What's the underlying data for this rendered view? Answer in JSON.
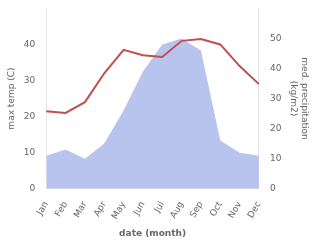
{
  "chart_data": {
    "type": "line",
    "categories": [
      "Jan",
      "Feb",
      "Mar",
      "Apr",
      "May",
      "Jun",
      "Jul",
      "Aug",
      "Sep",
      "Oct",
      "Nov",
      "Dec"
    ],
    "series": [
      {
        "type": "area",
        "color": "#b8c4ee",
        "axis": "y2",
        "values": [
          11,
          13,
          10,
          15,
          26,
          39,
          48,
          50,
          46,
          16,
          12,
          11
        ]
      },
      {
        "type": "line",
        "color": "#c0504d",
        "values": [
          21.5,
          21.0,
          24.0,
          32.0,
          38.5,
          37.0,
          36.5,
          41.0,
          41.5,
          40.0,
          34.0,
          29.0
        ]
      }
    ],
    "xlabel": "date (month)",
    "ylabel": "max temp (C)",
    "y2label": "med. precipitation\n(kg/m2)",
    "ylim": [
      0,
      50
    ],
    "yticks": [
      0,
      10,
      20,
      30,
      40
    ],
    "y2lim": [
      0,
      60
    ],
    "y2ticks": [
      0,
      10,
      20,
      30,
      40,
      50
    ],
    "grid": false
  }
}
